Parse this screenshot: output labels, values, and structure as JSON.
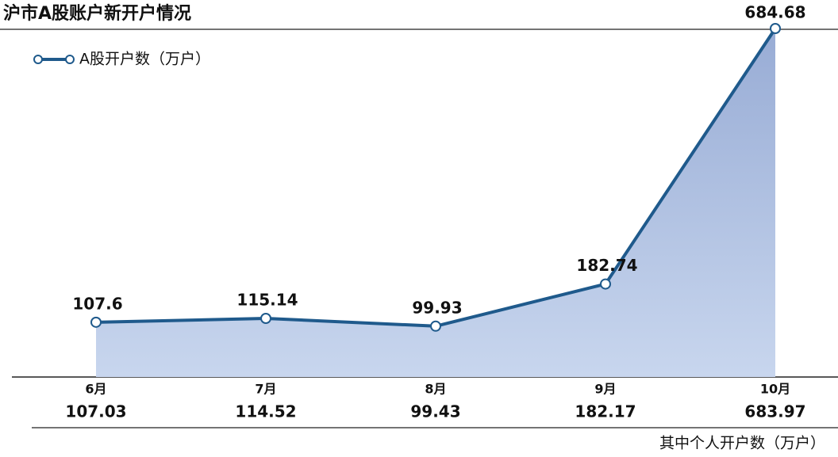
{
  "chart_data": {
    "type": "area",
    "title": "沪市A股账户新开户情况",
    "categories": [
      "6月",
      "7月",
      "8月",
      "9月",
      "10月"
    ],
    "series": [
      {
        "name": "A股开户数（万户）",
        "color": "#1f5a8c",
        "values": [
          107.6,
          115.14,
          99.93,
          182.74,
          684.68
        ]
      }
    ],
    "individual_accounts": {
      "label": "其中个人开户数（万户）",
      "values": [
        107.03,
        114.52,
        99.43,
        182.17,
        683.97
      ]
    }
  }
}
